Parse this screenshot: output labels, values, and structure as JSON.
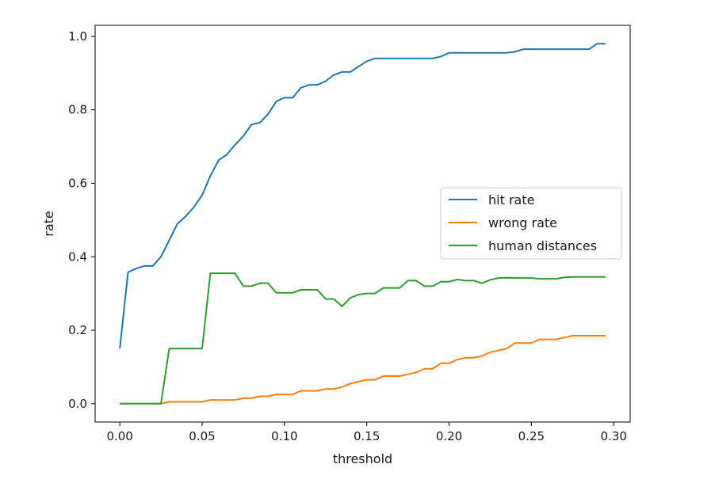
{
  "chart_data": {
    "type": "line",
    "xlabel": "threshold",
    "ylabel": "rate",
    "xlim": [
      -0.015,
      0.31
    ],
    "ylim": [
      -0.05,
      1.03
    ],
    "xticks": [
      "0.00",
      "0.05",
      "0.10",
      "0.15",
      "0.20",
      "0.25",
      "0.30"
    ],
    "yticks": [
      "0.0",
      "0.2",
      "0.4",
      "0.6",
      "0.8",
      "1.0"
    ],
    "grid": false,
    "legend_position": "center-right",
    "x": [
      0.0,
      0.005,
      0.01,
      0.015,
      0.02,
      0.025,
      0.03,
      0.035,
      0.04,
      0.045,
      0.05,
      0.055,
      0.06,
      0.065,
      0.07,
      0.075,
      0.08,
      0.085,
      0.09,
      0.095,
      0.1,
      0.105,
      0.11,
      0.115,
      0.12,
      0.125,
      0.13,
      0.135,
      0.14,
      0.145,
      0.15,
      0.155,
      0.16,
      0.165,
      0.17,
      0.175,
      0.18,
      0.185,
      0.19,
      0.195,
      0.2,
      0.205,
      0.21,
      0.215,
      0.22,
      0.225,
      0.23,
      0.235,
      0.24,
      0.245,
      0.25,
      0.255,
      0.26,
      0.265,
      0.27,
      0.275,
      0.28,
      0.285,
      0.29,
      0.295
    ],
    "series": [
      {
        "name": "hit rate",
        "color": "#1f77b4",
        "values": [
          0.15,
          0.358,
          0.368,
          0.375,
          0.375,
          0.4,
          0.445,
          0.49,
          0.51,
          0.535,
          0.568,
          0.62,
          0.663,
          0.678,
          0.705,
          0.728,
          0.76,
          0.765,
          0.788,
          0.823,
          0.833,
          0.833,
          0.86,
          0.868,
          0.868,
          0.878,
          0.895,
          0.903,
          0.903,
          0.918,
          0.932,
          0.94,
          0.94,
          0.94,
          0.94,
          0.94,
          0.94,
          0.94,
          0.94,
          0.945,
          0.955,
          0.955,
          0.955,
          0.955,
          0.955,
          0.955,
          0.955,
          0.955,
          0.958,
          0.965,
          0.965,
          0.965,
          0.965,
          0.965,
          0.965,
          0.965,
          0.965,
          0.965,
          0.98,
          0.98
        ]
      },
      {
        "name": "wrong rate",
        "color": "#ff7f0e",
        "values": [
          0.0,
          0.0,
          0.0,
          0.0,
          0.0,
          0.0,
          0.005,
          0.005,
          0.005,
          0.005,
          0.005,
          0.01,
          0.01,
          0.01,
          0.01,
          0.015,
          0.015,
          0.02,
          0.02,
          0.025,
          0.025,
          0.025,
          0.035,
          0.035,
          0.035,
          0.04,
          0.04,
          0.045,
          0.055,
          0.06,
          0.065,
          0.065,
          0.075,
          0.075,
          0.075,
          0.08,
          0.085,
          0.095,
          0.095,
          0.11,
          0.11,
          0.12,
          0.125,
          0.125,
          0.13,
          0.14,
          0.145,
          0.15,
          0.165,
          0.165,
          0.165,
          0.175,
          0.175,
          0.175,
          0.18,
          0.185,
          0.185,
          0.185,
          0.185,
          0.185
        ]
      },
      {
        "name": "human distances",
        "color": "#2ca02c",
        "values": [
          0.0,
          0.0,
          0.0,
          0.0,
          0.0,
          0.0,
          0.15,
          0.15,
          0.15,
          0.15,
          0.15,
          0.355,
          0.355,
          0.355,
          0.355,
          0.32,
          0.32,
          0.328,
          0.328,
          0.302,
          0.302,
          0.302,
          0.31,
          0.31,
          0.31,
          0.285,
          0.285,
          0.265,
          0.288,
          0.297,
          0.3,
          0.3,
          0.315,
          0.315,
          0.315,
          0.335,
          0.335,
          0.32,
          0.32,
          0.332,
          0.332,
          0.338,
          0.335,
          0.335,
          0.328,
          0.337,
          0.342,
          0.343,
          0.342,
          0.342,
          0.342,
          0.34,
          0.34,
          0.34,
          0.344,
          0.345,
          0.345,
          0.345,
          0.345,
          0.345
        ]
      }
    ]
  }
}
